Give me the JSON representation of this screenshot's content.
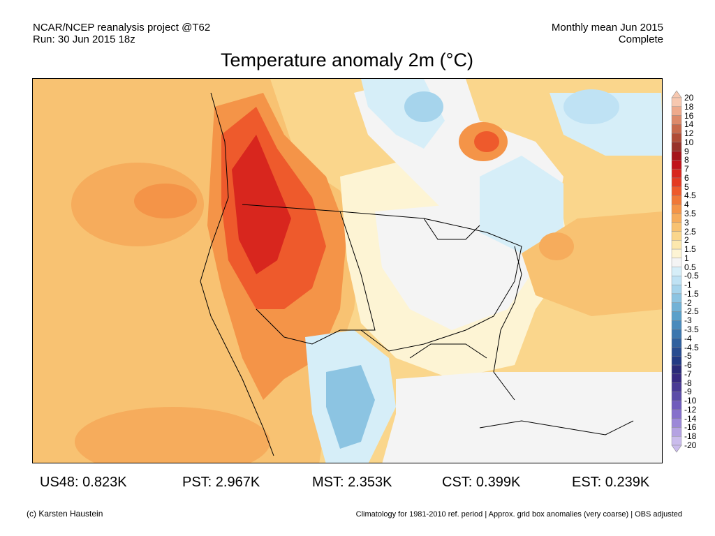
{
  "header": {
    "project": "NCAR/NCEP reanalysis project @T62",
    "run": "Run: 30 Jun 2015 18z",
    "period": "Monthly mean Jun 2015",
    "status": "Complete"
  },
  "title": "Temperature anomaly 2m (°C)",
  "legend": {
    "labels": [
      "20",
      "18",
      "16",
      "14",
      "12",
      "10",
      "9",
      "8",
      "7",
      "6",
      "5",
      "4.5",
      "4",
      "3.5",
      "3",
      "2.5",
      "2",
      "1.5",
      "1",
      "0.5",
      "-0.5",
      "-1",
      "-1.5",
      "-2",
      "-2.5",
      "-3",
      "-3.5",
      "-4",
      "-4.5",
      "-5",
      "-6",
      "-7",
      "-8",
      "-9",
      "-10",
      "-12",
      "-14",
      "-16",
      "-18",
      "-20"
    ],
    "colors": [
      "#f7c8b0",
      "#eeaa8c",
      "#dd8a6a",
      "#c86a4c",
      "#b04c36",
      "#98322a",
      "#a5141a",
      "#c0141c",
      "#d8261e",
      "#e43a22",
      "#ee5a2c",
      "#f07838",
      "#f49448",
      "#f6ac5c",
      "#f8c272",
      "#fad68c",
      "#fce8ae",
      "#fdf4d4",
      "#f4f4f4",
      "#d6eef8",
      "#bfe2f4",
      "#a6d4ec",
      "#8cc4e2",
      "#72b2d6",
      "#5aa0ca",
      "#4a8abc",
      "#3c76ae",
      "#30609e",
      "#284c90",
      "#223a84",
      "#2a2a78",
      "#382a80",
      "#4a3a94",
      "#5c4ca8",
      "#705cbc",
      "#8670cc",
      "#9c88d8",
      "#b4a2e2",
      "#cabcec"
    ]
  },
  "stats": {
    "us48": "US48: 0.823K",
    "pst": "PST: 2.967K",
    "mst": "MST: 2.353K",
    "cst": "CST: 0.399K",
    "est": "EST: 0.239K"
  },
  "footer": {
    "credit": "(c) Karsten Haustein",
    "note": "Climatology for 1981-2010 ref. period | Approx. grid box anomalies (very coarse) | OBS adjusted"
  }
}
